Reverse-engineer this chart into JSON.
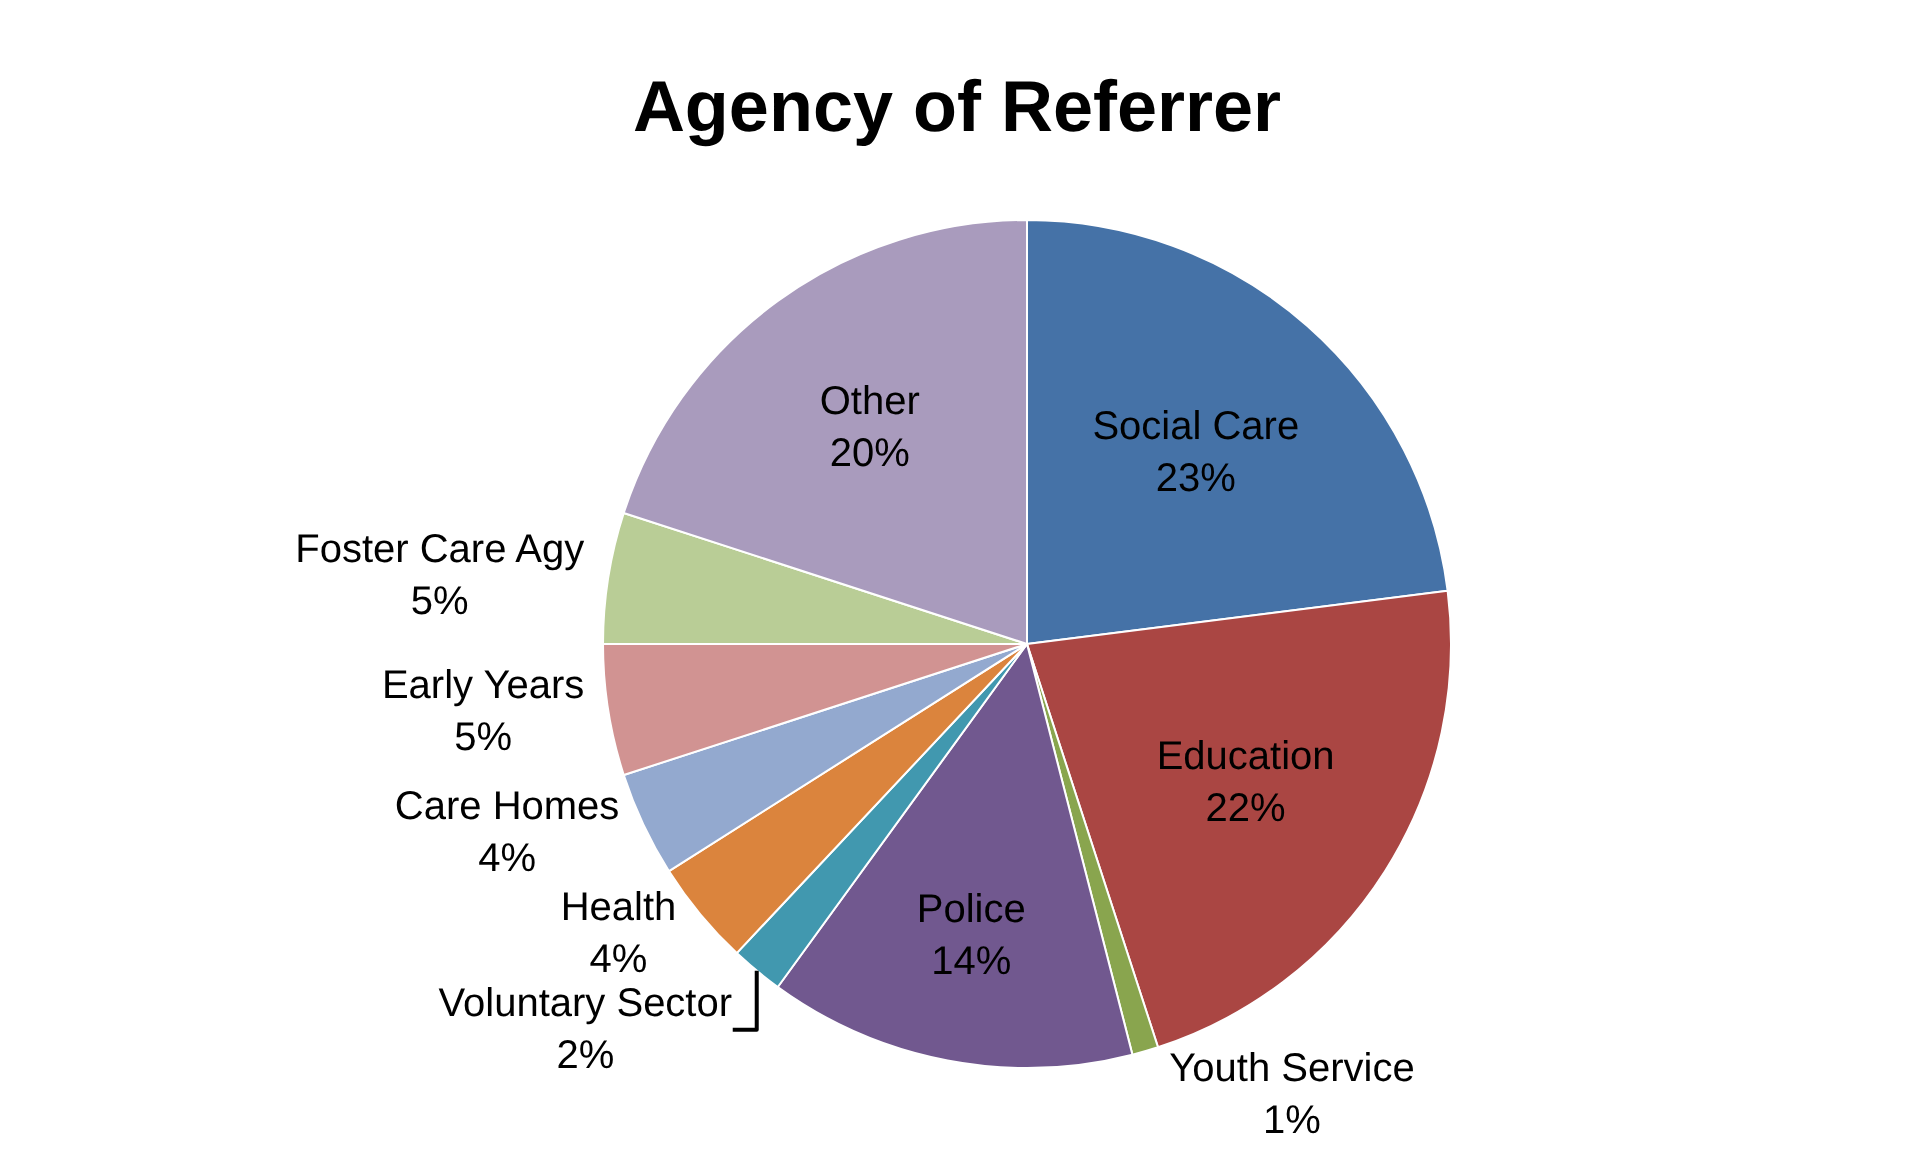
{
  "chart_data": {
    "type": "pie",
    "title": "Agency of Referrer",
    "categories": [
      "Social Care",
      "Education",
      "Youth Service",
      "Police",
      "Voluntary Sector",
      "Health",
      "Care Homes",
      "Early Years",
      "Foster Care Agy",
      "Other"
    ],
    "values": [
      23,
      22,
      1,
      14,
      2,
      4,
      4,
      5,
      5,
      20
    ],
    "value_labels": [
      "23%",
      "22%",
      "1%",
      "14%",
      "2%",
      "4%",
      "4%",
      "5%",
      "5%",
      "20%"
    ],
    "colors": [
      "#4572a7",
      "#aa4643",
      "#89a54e",
      "#71588f",
      "#4198af",
      "#db843d",
      "#93a9cf",
      "#d19392",
      "#b9cd96",
      "#a99bbd"
    ],
    "legend": false
  }
}
